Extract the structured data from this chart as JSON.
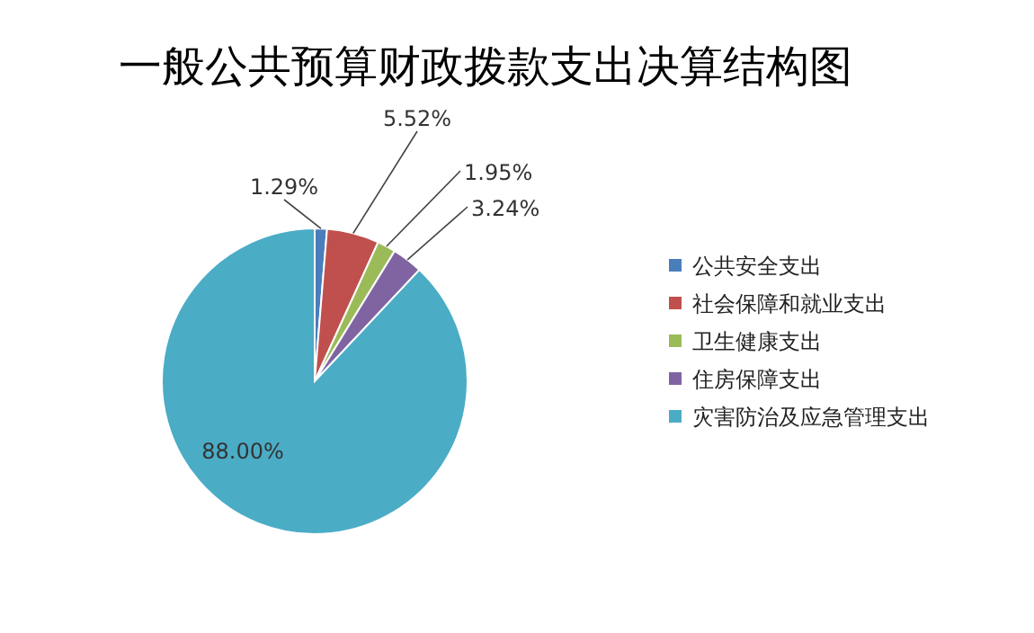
{
  "chart_data": {
    "type": "pie",
    "title": "一般公共预算财政拨款支出决算结构图",
    "categories": [
      "公共安全支出",
      "社会保障和就业支出",
      "卫生健康支出",
      "住房保障支出",
      "灾害防治及应急管理支出"
    ],
    "values": [
      1.29,
      5.52,
      1.95,
      3.24,
      88.0
    ],
    "value_labels": [
      "1.29%",
      "5.52%",
      "1.95%",
      "3.24%",
      "88.00%"
    ],
    "colors": [
      "#4a7ebb",
      "#c0504d",
      "#9bbb59",
      "#8064a2",
      "#4bacc6"
    ],
    "legend": "right"
  }
}
